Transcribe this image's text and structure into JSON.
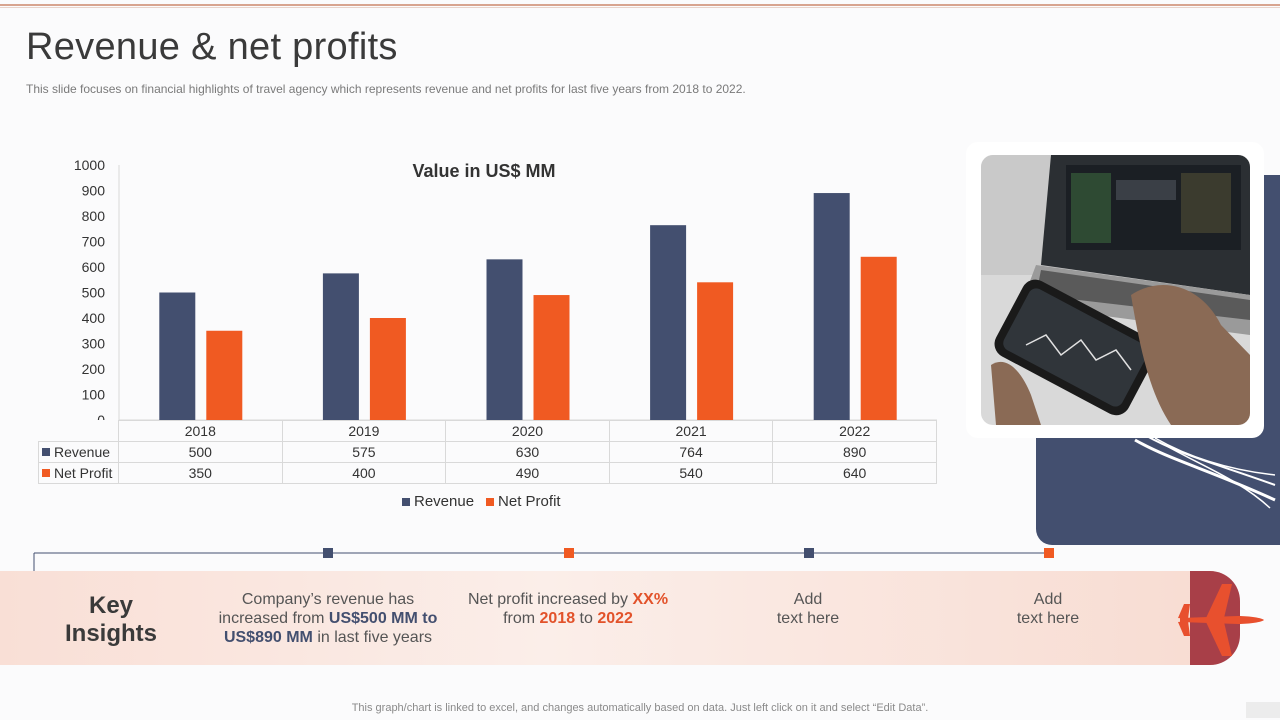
{
  "slide": {
    "title": "Revenue & net profits",
    "subtitle": "This slide focuses on financial highlights of travel agency which represents revenue and net profits for last five years from 2018 to 2022.",
    "footer": "This graph/chart is linked to excel, and changes automatically based on data. Just left click on it and select “Edit Data”."
  },
  "colors": {
    "revenue": "#434f6f",
    "net_profit": "#f05a22"
  },
  "chart_data": {
    "type": "bar",
    "title": "Value in US$ MM",
    "categories": [
      "2018",
      "2019",
      "2020",
      "2021",
      "2022"
    ],
    "series": [
      {
        "name": "Revenue",
        "values": [
          500,
          575,
          630,
          764,
          890
        ]
      },
      {
        "name": "Net Profit",
        "values": [
          350,
          400,
          490,
          540,
          640
        ]
      }
    ],
    "ylim": [
      0,
      1000
    ],
    "yticks": [
      0,
      100,
      200,
      300,
      400,
      500,
      600,
      700,
      800,
      900,
      1000
    ],
    "xlabel": "",
    "ylabel": "",
    "legend": "bottom",
    "data_table": true
  },
  "insights": {
    "title_line1": "Key",
    "title_line2": "Insights",
    "item1": {
      "line1": "Company’s revenue has",
      "line2_a": "increased from ",
      "line2_b": "US$500 MM to",
      "line3_a": "US$890 MM",
      "line3_b": " in last five years"
    },
    "item2": {
      "line1_a": "Net profit increased by ",
      "line1_b": "XX%",
      "line2_a": "from ",
      "line2_b": "2018",
      "line2_c": " to ",
      "line2_d": "2022"
    },
    "item3": {
      "line1": "Add",
      "line2": "text here"
    },
    "item4": {
      "line1": "Add",
      "line2": "text here"
    }
  }
}
